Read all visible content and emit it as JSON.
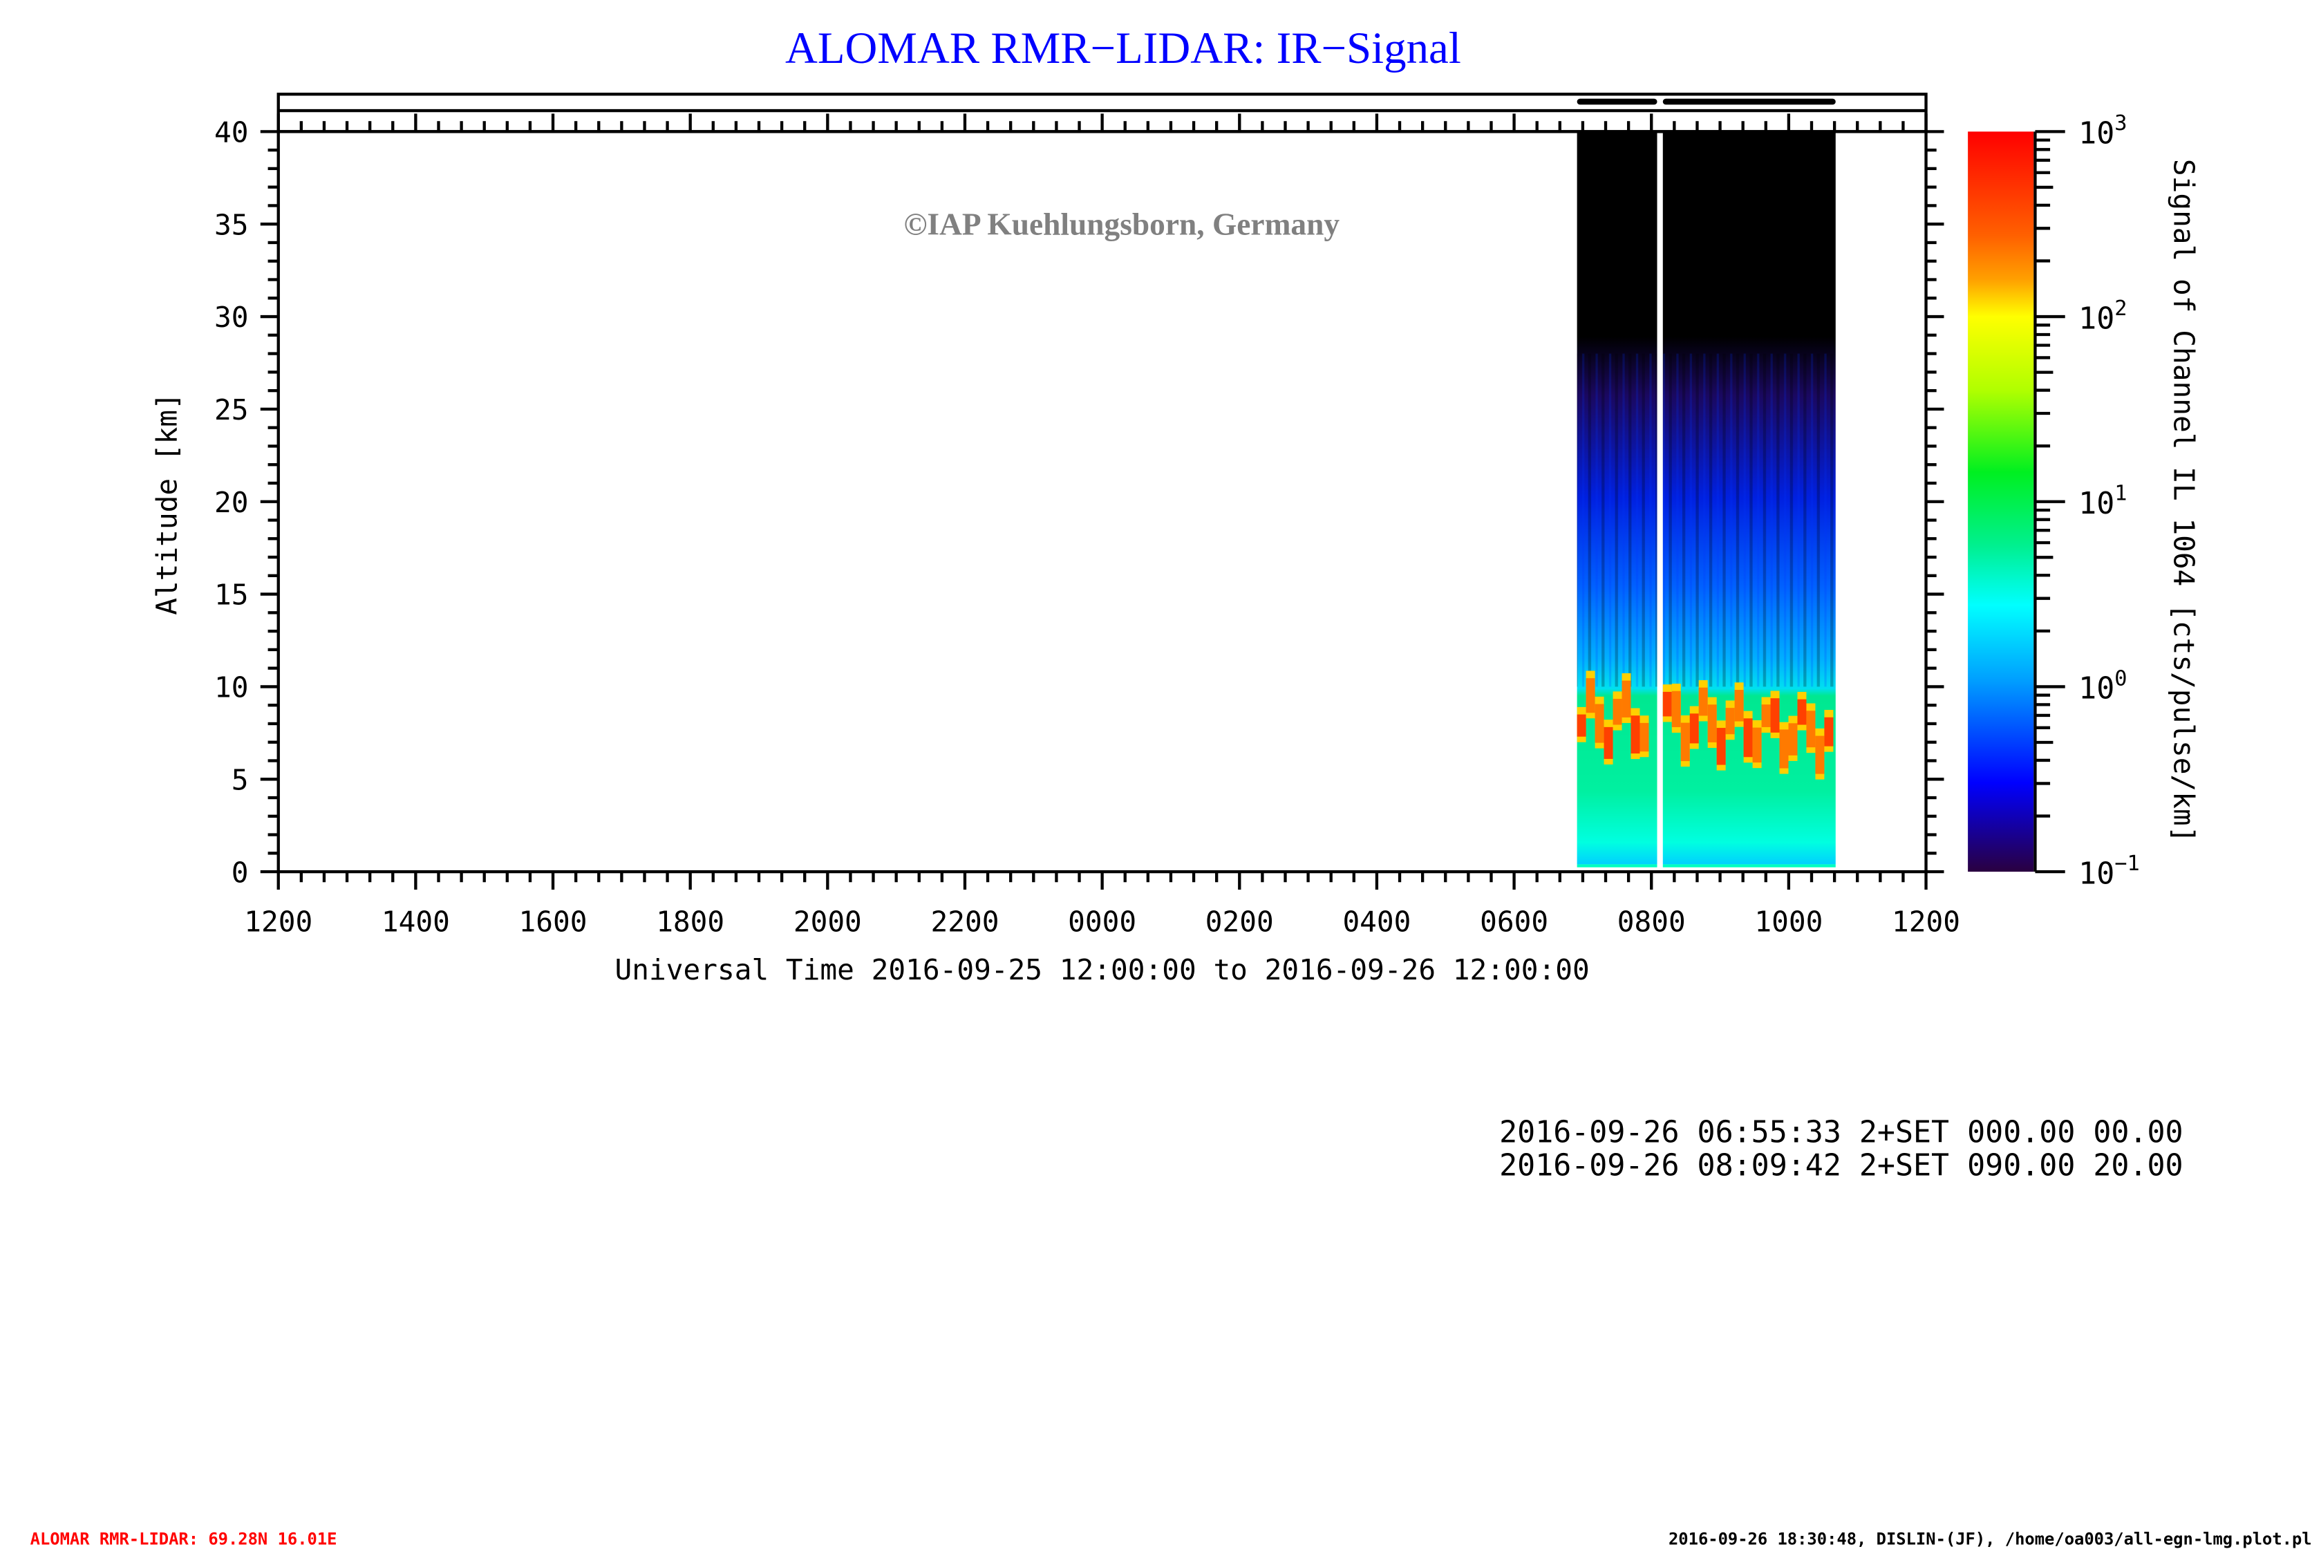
{
  "chart_data": {
    "type": "heatmap",
    "title": "ALOMAR RMR−LIDAR: IR−Signal",
    "watermark": "©IAP Kuehlungsborn, Germany",
    "xlabel": "Universal Time 2016-09-25 12:00:00 to 2016-09-26 12:00:00",
    "ylabel": "Altitude [km]",
    "xlim_hours": [
      0,
      24
    ],
    "x_tick_labels": [
      "1200",
      "1400",
      "1600",
      "1800",
      "2000",
      "2200",
      "0000",
      "0200",
      "0400",
      "0600",
      "0800",
      "1000",
      "1200"
    ],
    "ylim": [
      0,
      40
    ],
    "y_ticks": [
      0,
      5,
      10,
      15,
      20,
      25,
      30,
      35,
      40
    ],
    "colorbar": {
      "label": "Signal of Channel IL 1064 [cts/pulse/km]",
      "scale": "log",
      "range": [
        0.1,
        1000
      ],
      "ticks": [
        {
          "base": "10",
          "exp": "3"
        },
        {
          "base": "10",
          "exp": "2"
        },
        {
          "base": "10",
          "exp": "1"
        },
        {
          "base": "10",
          "exp": "0"
        },
        {
          "base": "10",
          "exp": "−1"
        }
      ],
      "colors": [
        "#ff0000",
        "#ff8000",
        "#ffff00",
        "#00ff00",
        "#00ffff",
        "#0080ff",
        "#0000ff",
        "#2a0040"
      ]
    },
    "measurement_segments": [
      {
        "start": "06:55",
        "end": "08:05"
      },
      {
        "start": "08:10",
        "end": "10:41"
      }
    ],
    "features": {
      "cloud_layer_km": [
        6,
        10
      ],
      "cloud_signal": "~100-300",
      "background_below_cloud": "~3-10",
      "signal_top_km": 28
    }
  },
  "info_lines": [
    "2016-09-26 06:55:33 2+SET 000.00 00.00",
    "2016-09-26 08:09:42 2+SET 090.00 20.00"
  ],
  "footer": {
    "left": "ALOMAR RMR-LIDAR: 69.28N 16.01E",
    "right": "2016-09-26 18:30:48, DISLIN-(JF), /home/oa003/all-egn-lmg.plot.pl"
  }
}
